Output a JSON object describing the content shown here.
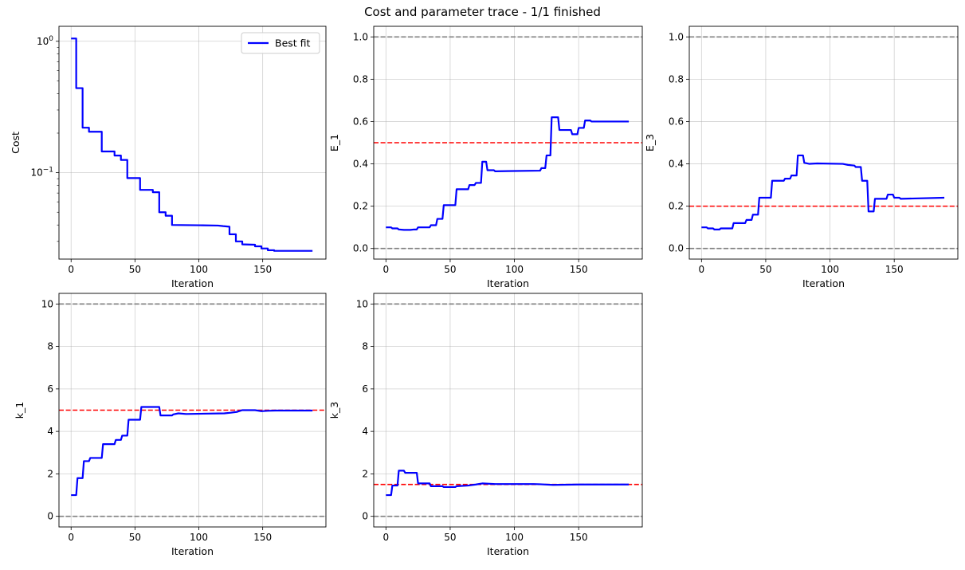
{
  "figure": {
    "title": "Cost and parameter trace - 1/1 finished"
  },
  "colors": {
    "fit": "#0000ff",
    "truth": "#ff0000",
    "bounds": "#808080",
    "grid": "#b0b0b0"
  },
  "chart_data": [
    {
      "type": "line",
      "ylabel": "Cost",
      "xlabel": "Iteration",
      "yscale": "log",
      "xlim": [
        -9.5,
        199.5
      ],
      "ylim": [
        0.022,
        1.3
      ],
      "xticks": [
        0,
        50,
        100,
        150
      ],
      "yticks": [
        {
          "value": 1,
          "base": "10",
          "exp": "0"
        },
        {
          "value": 0.1,
          "base": "10",
          "exp": "−1"
        }
      ],
      "legend": {
        "position": "top-right",
        "entries": [
          "Best fit"
        ]
      },
      "grid": true,
      "hlines": [],
      "series": [
        {
          "name": "Best fit",
          "points": [
            [
              0,
              1.05
            ],
            [
              4,
              1.05
            ],
            [
              4,
              0.44
            ],
            [
              9,
              0.44
            ],
            [
              9,
              0.22
            ],
            [
              14,
              0.22
            ],
            [
              14,
              0.205
            ],
            [
              24,
              0.205
            ],
            [
              24,
              0.145
            ],
            [
              34,
              0.145
            ],
            [
              34,
              0.135
            ],
            [
              39,
              0.135
            ],
            [
              39,
              0.125
            ],
            [
              44,
              0.125
            ],
            [
              44,
              0.091
            ],
            [
              54,
              0.091
            ],
            [
              54,
              0.074
            ],
            [
              64,
              0.074
            ],
            [
              64,
              0.071
            ],
            [
              69,
              0.071
            ],
            [
              69,
              0.05
            ],
            [
              74,
              0.05
            ],
            [
              74,
              0.047
            ],
            [
              79,
              0.047
            ],
            [
              79,
              0.04
            ],
            [
              100,
              0.0398
            ],
            [
              115,
              0.0396
            ],
            [
              119,
              0.0392
            ],
            [
              124,
              0.0388
            ],
            [
              124,
              0.034
            ],
            [
              129,
              0.034
            ],
            [
              129,
              0.03
            ],
            [
              134,
              0.03
            ],
            [
              134,
              0.0285
            ],
            [
              144,
              0.0283
            ],
            [
              144,
              0.0275
            ],
            [
              149,
              0.0275
            ],
            [
              149,
              0.0265
            ],
            [
              154,
              0.0265
            ],
            [
              154,
              0.0257
            ],
            [
              159,
              0.0257
            ],
            [
              159,
              0.0254
            ],
            [
              189,
              0.0254
            ]
          ]
        }
      ]
    },
    {
      "type": "line",
      "ylabel": "E_1",
      "xlabel": "Iteration",
      "yscale": "linear",
      "xlim": [
        -9.5,
        199.5
      ],
      "ylim": [
        -0.05,
        1.05
      ],
      "xticks": [
        0,
        50,
        100,
        150
      ],
      "yticks": [
        0.0,
        0.2,
        0.4,
        0.6,
        0.8,
        1.0
      ],
      "ytick_labels": [
        "0.0",
        "0.2",
        "0.4",
        "0.6",
        "0.8",
        "1.0"
      ],
      "grid": true,
      "hlines": [
        {
          "y": 1.0,
          "kind": "bounds"
        },
        {
          "y": 0.0,
          "kind": "bounds"
        },
        {
          "y": 0.5,
          "kind": "truth"
        }
      ],
      "series": [
        {
          "points": [
            [
              0,
              0.1
            ],
            [
              4,
              0.1
            ],
            [
              5,
              0.095
            ],
            [
              9,
              0.095
            ],
            [
              10,
              0.09
            ],
            [
              14,
              0.088
            ],
            [
              19,
              0.088
            ],
            [
              22,
              0.09
            ],
            [
              24,
              0.09
            ],
            [
              25,
              0.1
            ],
            [
              34,
              0.1
            ],
            [
              35,
              0.11
            ],
            [
              39,
              0.11
            ],
            [
              40,
              0.14
            ],
            [
              44,
              0.14
            ],
            [
              45,
              0.205
            ],
            [
              54,
              0.205
            ],
            [
              55,
              0.28
            ],
            [
              64,
              0.28
            ],
            [
              65,
              0.3
            ],
            [
              69,
              0.3
            ],
            [
              70,
              0.31
            ],
            [
              74,
              0.31
            ],
            [
              75,
              0.41
            ],
            [
              78,
              0.41
            ],
            [
              79,
              0.37
            ],
            [
              84,
              0.37
            ],
            [
              85,
              0.365
            ],
            [
              120,
              0.368
            ],
            [
              121,
              0.38
            ],
            [
              124,
              0.38
            ],
            [
              125,
              0.44
            ],
            [
              128,
              0.44
            ],
            [
              129,
              0.62
            ],
            [
              134,
              0.62
            ],
            [
              135,
              0.56
            ],
            [
              144,
              0.56
            ],
            [
              145,
              0.54
            ],
            [
              149,
              0.54
            ],
            [
              150,
              0.57
            ],
            [
              154,
              0.57
            ],
            [
              155,
              0.605
            ],
            [
              159,
              0.605
            ],
            [
              160,
              0.6
            ],
            [
              189,
              0.6
            ]
          ]
        }
      ]
    },
    {
      "type": "line",
      "ylabel": "E_3",
      "xlabel": "Iteration",
      "yscale": "linear",
      "xlim": [
        -9.5,
        199.5
      ],
      "ylim": [
        -0.05,
        1.05
      ],
      "xticks": [
        0,
        50,
        100,
        150
      ],
      "yticks": [
        0.0,
        0.2,
        0.4,
        0.6,
        0.8,
        1.0
      ],
      "ytick_labels": [
        "0.0",
        "0.2",
        "0.4",
        "0.6",
        "0.8",
        "1.0"
      ],
      "grid": true,
      "hlines": [
        {
          "y": 1.0,
          "kind": "bounds"
        },
        {
          "y": 0.0,
          "kind": "bounds"
        },
        {
          "y": 0.2,
          "kind": "truth"
        }
      ],
      "series": [
        {
          "points": [
            [
              0,
              0.1
            ],
            [
              4,
              0.1
            ],
            [
              5,
              0.095
            ],
            [
              9,
              0.095
            ],
            [
              10,
              0.09
            ],
            [
              14,
              0.09
            ],
            [
              15,
              0.095
            ],
            [
              24,
              0.095
            ],
            [
              25,
              0.12
            ],
            [
              34,
              0.12
            ],
            [
              35,
              0.135
            ],
            [
              39,
              0.135
            ],
            [
              40,
              0.16
            ],
            [
              44,
              0.16
            ],
            [
              45,
              0.24
            ],
            [
              54,
              0.24
            ],
            [
              55,
              0.32
            ],
            [
              64,
              0.32
            ],
            [
              65,
              0.33
            ],
            [
              69,
              0.33
            ],
            [
              70,
              0.345
            ],
            [
              74,
              0.345
            ],
            [
              75,
              0.44
            ],
            [
              79,
              0.44
            ],
            [
              80,
              0.405
            ],
            [
              84,
              0.4
            ],
            [
              90,
              0.402
            ],
            [
              110,
              0.4
            ],
            [
              114,
              0.395
            ],
            [
              119,
              0.392
            ],
            [
              120,
              0.385
            ],
            [
              124,
              0.385
            ],
            [
              125,
              0.32
            ],
            [
              129,
              0.32
            ],
            [
              130,
              0.175
            ],
            [
              134,
              0.175
            ],
            [
              135,
              0.235
            ],
            [
              144,
              0.235
            ],
            [
              145,
              0.255
            ],
            [
              149,
              0.255
            ],
            [
              150,
              0.24
            ],
            [
              154,
              0.24
            ],
            [
              155,
              0.235
            ],
            [
              189,
              0.24
            ]
          ]
        }
      ]
    },
    {
      "type": "line",
      "ylabel": "k_1",
      "xlabel": "Iteration",
      "yscale": "linear",
      "xlim": [
        -9.5,
        199.5
      ],
      "ylim": [
        -0.5,
        10.5
      ],
      "xticks": [
        0,
        50,
        100,
        150
      ],
      "yticks": [
        0,
        2,
        4,
        6,
        8,
        10
      ],
      "ytick_labels": [
        "0",
        "2",
        "4",
        "6",
        "8",
        "10"
      ],
      "grid": true,
      "hlines": [
        {
          "y": 10,
          "kind": "bounds"
        },
        {
          "y": 0,
          "kind": "bounds"
        },
        {
          "y": 5,
          "kind": "truth"
        }
      ],
      "series": [
        {
          "points": [
            [
              0,
              1.0
            ],
            [
              4,
              1.0
            ],
            [
              5,
              1.8
            ],
            [
              9,
              1.8
            ],
            [
              10,
              2.6
            ],
            [
              14,
              2.6
            ],
            [
              15,
              2.75
            ],
            [
              24,
              2.75
            ],
            [
              25,
              3.4
            ],
            [
              34,
              3.4
            ],
            [
              35,
              3.6
            ],
            [
              39,
              3.6
            ],
            [
              40,
              3.8
            ],
            [
              44,
              3.8
            ],
            [
              45,
              4.55
            ],
            [
              54,
              4.55
            ],
            [
              55,
              5.15
            ],
            [
              69,
              5.15
            ],
            [
              70,
              4.75
            ],
            [
              79,
              4.75
            ],
            [
              80,
              4.8
            ],
            [
              84,
              4.85
            ],
            [
              90,
              4.82
            ],
            [
              120,
              4.85
            ],
            [
              125,
              4.88
            ],
            [
              130,
              4.92
            ],
            [
              134,
              5.0
            ],
            [
              144,
              5.0
            ],
            [
              149,
              4.95
            ],
            [
              154,
              4.97
            ],
            [
              160,
              4.98
            ],
            [
              189,
              4.98
            ]
          ]
        }
      ]
    },
    {
      "type": "line",
      "ylabel": "k_3",
      "xlabel": "Iteration",
      "yscale": "linear",
      "xlim": [
        -9.5,
        199.5
      ],
      "ylim": [
        -0.5,
        10.5
      ],
      "xticks": [
        0,
        50,
        100,
        150
      ],
      "yticks": [
        0,
        2,
        4,
        6,
        8,
        10
      ],
      "ytick_labels": [
        "0",
        "2",
        "4",
        "6",
        "8",
        "10"
      ],
      "grid": true,
      "hlines": [
        {
          "y": 10,
          "kind": "bounds"
        },
        {
          "y": 0,
          "kind": "bounds"
        },
        {
          "y": 1.5,
          "kind": "truth"
        }
      ],
      "series": [
        {
          "points": [
            [
              0,
              1.0
            ],
            [
              4,
              1.0
            ],
            [
              5,
              1.45
            ],
            [
              9,
              1.45
            ],
            [
              10,
              2.15
            ],
            [
              14,
              2.15
            ],
            [
              15,
              2.05
            ],
            [
              24,
              2.05
            ],
            [
              25,
              1.55
            ],
            [
              34,
              1.55
            ],
            [
              35,
              1.42
            ],
            [
              44,
              1.42
            ],
            [
              45,
              1.38
            ],
            [
              54,
              1.38
            ],
            [
              55,
              1.42
            ],
            [
              64,
              1.45
            ],
            [
              70,
              1.5
            ],
            [
              75,
              1.55
            ],
            [
              85,
              1.52
            ],
            [
              100,
              1.52
            ],
            [
              115,
              1.52
            ],
            [
              120,
              1.51
            ],
            [
              130,
              1.48
            ],
            [
              140,
              1.49
            ],
            [
              150,
              1.5
            ],
            [
              189,
              1.5
            ]
          ]
        }
      ]
    }
  ]
}
